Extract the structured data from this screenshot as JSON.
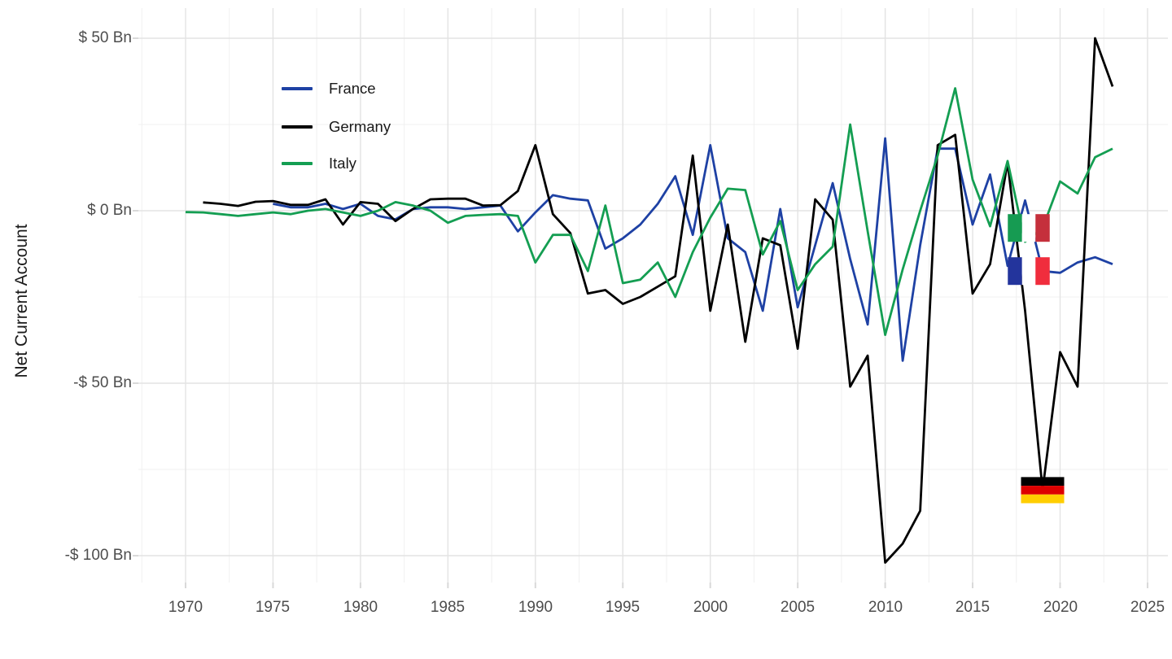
{
  "figure": {
    "y_axis_title": "Net Current Account",
    "x_tick_labels": [
      "1970",
      "1975",
      "1980",
      "1985",
      "1990",
      "1995",
      "2000",
      "2005",
      "2010",
      "2015",
      "2020",
      "2025"
    ],
    "y_tick_labels": [
      "$ 50 Bn",
      "$ 0 Bn",
      "-$ 50 Bn",
      "-$ 100 Bn"
    ],
    "legend": [
      {
        "label": "France",
        "color": "#1e41a4"
      },
      {
        "label": "Germany",
        "color": "#000000"
      },
      {
        "label": "Italy",
        "color": "#149e52"
      }
    ],
    "colors": {
      "grid_major": "#e3e3e3",
      "grid_minor": "#f0f0f0",
      "axis_text": "#4d4d4d",
      "tick_mark": "#d9d9d9"
    }
  },
  "chart_data": {
    "type": "line",
    "title": "",
    "xlabel": "",
    "ylabel": "Net Current Account",
    "x_ticks": [
      1970,
      1975,
      1980,
      1985,
      1990,
      1995,
      2000,
      2005,
      2010,
      2015,
      2020,
      2025
    ],
    "x_minor_ticks": [
      1967.5,
      1972.5,
      1977.5,
      1982.5,
      1987.5,
      1992.5,
      1997.5,
      2002.5,
      2007.5,
      2012.5,
      2017.5,
      2022.5
    ],
    "y_ticks_bn": [
      50,
      0,
      -50,
      -100
    ],
    "y_minor_ticks_bn": [
      25,
      -25,
      -75
    ],
    "ylim_bn": [
      -108,
      58
    ],
    "xlim": [
      1967.3,
      2026.2
    ],
    "grid": true,
    "legend_position": "inside-top-left",
    "units": "billions of dollars",
    "series": [
      {
        "name": "France",
        "color": "#1e41a4",
        "years": [
          1975,
          1976,
          1977,
          1978,
          1979,
          1980,
          1981,
          1982,
          1983,
          1984,
          1985,
          1986,
          1987,
          1988,
          1989,
          1990,
          1991,
          1992,
          1993,
          1994,
          1995,
          1996,
          1997,
          1998,
          1999,
          2000,
          2001,
          2002,
          2003,
          2004,
          2005,
          2006,
          2007,
          2008,
          2009,
          2010,
          2011,
          2012,
          2013,
          2014,
          2015,
          2016,
          2017,
          2018,
          2019,
          2020,
          2021,
          2022,
          2023
        ],
        "values": [
          2,
          1,
          1,
          2,
          0.5,
          2,
          -1.5,
          -2.5,
          0.5,
          1,
          1,
          0.5,
          1,
          1.5,
          -6,
          -0.5,
          4.5,
          3.5,
          3,
          -11,
          -8,
          -4,
          2,
          10,
          -7,
          19,
          -8,
          -12,
          -29,
          0.5,
          -28,
          -10,
          8,
          -14,
          -33,
          21,
          -43.5,
          -10,
          18,
          18,
          -4,
          10.5,
          -16,
          3,
          -17.5,
          -18,
          -15,
          -13.5,
          -15.5
        ]
      },
      {
        "name": "Germany",
        "color": "#000000",
        "years": [
          1971,
          1972,
          1973,
          1974,
          1975,
          1976,
          1977,
          1978,
          1979,
          1980,
          1981,
          1982,
          1983,
          1984,
          1985,
          1986,
          1987,
          1988,
          1989,
          1990,
          1991,
          1992,
          1993,
          1994,
          1995,
          1996,
          1997,
          1998,
          1999,
          2000,
          2001,
          2002,
          2003,
          2004,
          2005,
          2006,
          2007,
          2008,
          2009,
          2010,
          2011,
          2012,
          2013,
          2014,
          2015,
          2016,
          2017,
          2018,
          2019,
          2020,
          2021,
          2022,
          2023
        ],
        "values": [
          2.4,
          2,
          1.4,
          2.6,
          2.8,
          1.7,
          1.7,
          3.3,
          -4,
          2.5,
          2,
          -3,
          0.5,
          3.3,
          3.5,
          3.5,
          1.5,
          1.6,
          5.7,
          19,
          -1,
          -6.5,
          -24,
          -23,
          -27,
          -25,
          -22,
          -19,
          16,
          -29,
          -4,
          -38,
          -8,
          -10,
          -40,
          3.3,
          -2.6,
          -51,
          -42,
          -102,
          -96.5,
          -87,
          19,
          22,
          -24,
          -15.5,
          14,
          -29,
          -81,
          -41,
          -51,
          50,
          36
        ]
      },
      {
        "name": "Italy",
        "color": "#149e52",
        "years": [
          1970,
          1971,
          1972,
          1973,
          1974,
          1975,
          1976,
          1977,
          1978,
          1979,
          1980,
          1981,
          1982,
          1983,
          1984,
          1985,
          1986,
          1987,
          1988,
          1989,
          1990,
          1991,
          1992,
          1993,
          1994,
          1995,
          1996,
          1997,
          1998,
          1999,
          2000,
          2001,
          2002,
          2003,
          2004,
          2005,
          2006,
          2007,
          2008,
          2009,
          2010,
          2011,
          2012,
          2013,
          2014,
          2015,
          2016,
          2017,
          2018,
          2019,
          2020,
          2021,
          2022,
          2023
        ],
        "values": [
          -0.4,
          -0.5,
          -1,
          -1.5,
          -1,
          -0.5,
          -1,
          0,
          0.5,
          -0.5,
          -1.5,
          0,
          2.5,
          1.5,
          0,
          -3.5,
          -1.5,
          -1.2,
          -1,
          -1.5,
          -15,
          -7,
          -7,
          -17.5,
          1.5,
          -21,
          -20,
          -15,
          -25,
          -12,
          -2,
          6.4,
          6,
          -12.7,
          -3,
          -23,
          -15.5,
          -10.4,
          25,
          -6,
          -36,
          -17,
          0,
          16,
          35.5,
          9,
          -4.5,
          14.4,
          -9,
          -5,
          8.5,
          5,
          15.5,
          18
        ]
      }
    ],
    "annotations": [
      {
        "kind": "flag-marker",
        "country": "Italy",
        "year": 2019,
        "value_bn": -5,
        "layout": "vertical-tricolor",
        "colors": [
          "#169B52",
          "#ffffff",
          "#C5303C"
        ]
      },
      {
        "kind": "flag-marker",
        "country": "France",
        "year": 2019,
        "value_bn": -17.5,
        "layout": "vertical-tricolor",
        "colors": [
          "#23349C",
          "#ffffff",
          "#F02D3D"
        ]
      },
      {
        "kind": "flag-marker",
        "country": "Germany",
        "year": 2019,
        "value_bn": -81,
        "layout": "horizontal-tricolor",
        "colors": [
          "#000000",
          "#DD0000",
          "#FFCE00"
        ]
      }
    ]
  }
}
